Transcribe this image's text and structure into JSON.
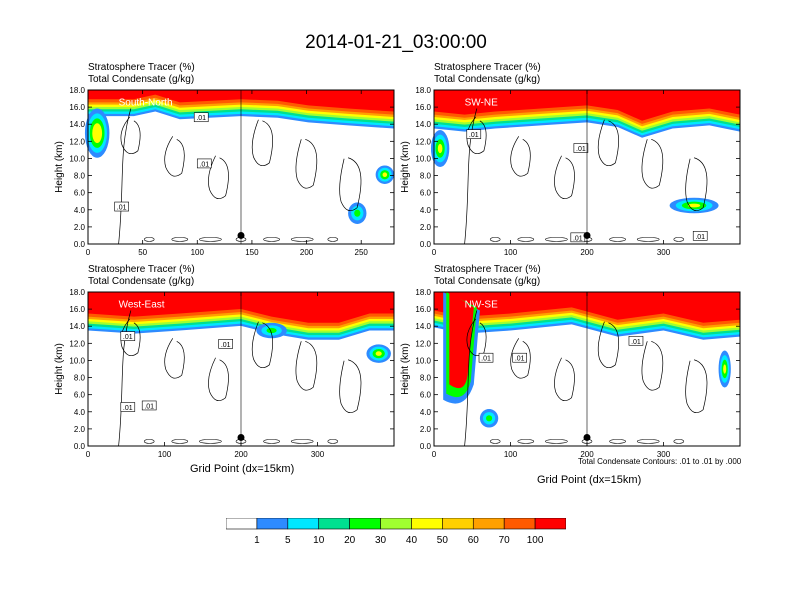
{
  "title": "2014-01-21_03:00:00",
  "colorbar": {
    "colors": [
      "#ffffff",
      "#2e8bff",
      "#00e8ff",
      "#00e090",
      "#00ff00",
      "#a0ff30",
      "#ffff00",
      "#ffd000",
      "#ffa000",
      "#ff5a00",
      "#ff0000"
    ],
    "labels": [
      "1",
      "5",
      "10",
      "20",
      "30",
      "40",
      "50",
      "60",
      "70",
      "100"
    ]
  },
  "chart_data": [
    {
      "type": "heatmap",
      "name": "South-North",
      "header_lines": [
        "Stratosphere Tracer   (%)",
        "Total Condensate   (g/kg)"
      ],
      "ylabel": "Height (km)",
      "xlabel": "",
      "xlim": [
        0,
        280
      ],
      "ylim": [
        0,
        18
      ],
      "xticks": [
        0,
        50,
        100,
        150,
        200,
        250
      ],
      "yticks": [
        "0.0",
        "2.0",
        "4.0",
        "6.0",
        "8.0",
        "10.0",
        "12.0",
        "14.0",
        "16.0",
        "18.0"
      ],
      "contour_labels": [
        ".01",
        ".01",
        ".01"
      ],
      "marker": {
        "x": 140,
        "y": 1.0
      }
    },
    {
      "type": "heatmap",
      "name": "SW-NE",
      "header_lines": [
        "Stratosphere Tracer   (%)",
        "Total Condensate   (g/kg)"
      ],
      "ylabel": "Height (km)",
      "xlabel": "",
      "xlim": [
        0,
        400
      ],
      "ylim": [
        0,
        18
      ],
      "xticks": [
        0,
        100,
        200,
        300
      ],
      "yticks": [
        "0.0",
        "2.0",
        "4.0",
        "6.0",
        "8.0",
        "10.0",
        "12.0",
        "14.0",
        "16.0",
        "18.0"
      ],
      "contour_labels": [
        ".01",
        ".01",
        ".01",
        ".01"
      ],
      "marker": {
        "x": 200,
        "y": 1.0
      }
    },
    {
      "type": "heatmap",
      "name": "West-East",
      "header_lines": [
        "Stratosphere Tracer   (%)",
        "Total Condensate   (g/kg)"
      ],
      "ylabel": "Height (km)",
      "xlabel": "Grid Point (dx=15km)",
      "xlim": [
        0,
        400
      ],
      "ylim": [
        0,
        18
      ],
      "xticks": [
        0,
        100,
        200,
        300
      ],
      "yticks": [
        "0.0",
        "2.0",
        "4.0",
        "6.0",
        "8.0",
        "10.0",
        "12.0",
        "14.0",
        "16.0",
        "18.0"
      ],
      "contour_labels": [
        ".01",
        ".01",
        ".01",
        ".01"
      ],
      "marker": {
        "x": 200,
        "y": 1.0
      }
    },
    {
      "type": "heatmap",
      "name": "NW-SE",
      "header_lines": [
        "Stratosphere Tracer   (%)",
        "Total Condensate   (g/kg)"
      ],
      "ylabel": "Height (km)",
      "xlabel": "Grid Point (dx=15km)",
      "note": "Total Condensate Contours: .01 to .01 by .000",
      "xlim": [
        0,
        400
      ],
      "ylim": [
        0,
        18
      ],
      "xticks": [
        0,
        100,
        200,
        300
      ],
      "yticks": [
        "0.0",
        "2.0",
        "4.0",
        "6.0",
        "8.0",
        "10.0",
        "12.0",
        "14.0",
        "16.0",
        "18.0"
      ],
      "contour_labels": [
        ".01",
        ".01",
        ".01"
      ],
      "marker": {
        "x": 200,
        "y": 1.0
      }
    }
  ]
}
